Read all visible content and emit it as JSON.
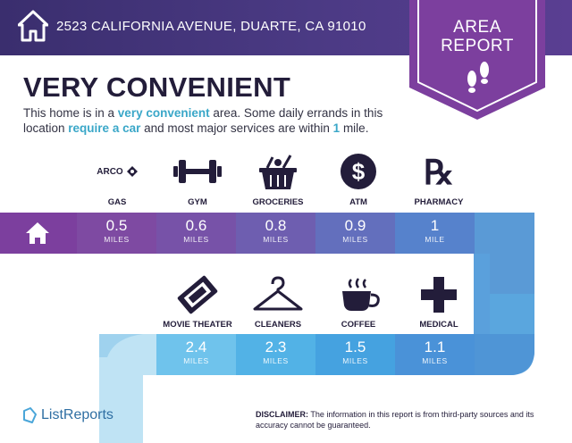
{
  "header": {
    "address": "2523 CALIFORNIA AVENUE, DUARTE, CA 91010",
    "badge_line1": "AREA",
    "badge_line2": "REPORT",
    "colors": {
      "header": "#3a2e6e",
      "badge": "#7c3f9e",
      "accent": "#3aa7c8"
    }
  },
  "headline": "VERY CONVENIENT",
  "description": {
    "p1": "This home is in a ",
    "h1": "very convenient",
    "p2": " area. Some daily errands in this location ",
    "h2": "require a car",
    "p3": " and most major services are within ",
    "h3": "1",
    "p4": " mile."
  },
  "row1": [
    {
      "label": "GAS",
      "icon": "gas-station-icon",
      "brand": "ARCO",
      "value": "0.5",
      "unit": "MILES"
    },
    {
      "label": "GYM",
      "icon": "dumbbell-icon",
      "value": "0.6",
      "unit": "MILES"
    },
    {
      "label": "GROCERIES",
      "icon": "grocery-basket-icon",
      "value": "0.8",
      "unit": "MILES"
    },
    {
      "label": "ATM",
      "icon": "dollar-icon",
      "value": "0.9",
      "unit": "MILES"
    },
    {
      "label": "PHARMACY",
      "icon": "rx-icon",
      "value": "1",
      "unit": "MILE"
    }
  ],
  "row2": [
    {
      "label": "MOVIE THEATER",
      "icon": "ticket-icon",
      "value": "2.4",
      "unit": "MILES"
    },
    {
      "label": "CLEANERS",
      "icon": "hanger-icon",
      "value": "2.3",
      "unit": "MILES"
    },
    {
      "label": "COFFEE",
      "icon": "coffee-cup-icon",
      "value": "1.5",
      "unit": "MILES"
    },
    {
      "label": "MEDICAL",
      "icon": "medical-cross-icon",
      "value": "1.1",
      "unit": "MILES"
    }
  ],
  "footer": {
    "logo": "ListReports",
    "disclaimer_label": "DISCLAIMER:",
    "disclaimer_text": " The information in this report is from third-party sources and its accuracy cannot be guaranteed."
  }
}
